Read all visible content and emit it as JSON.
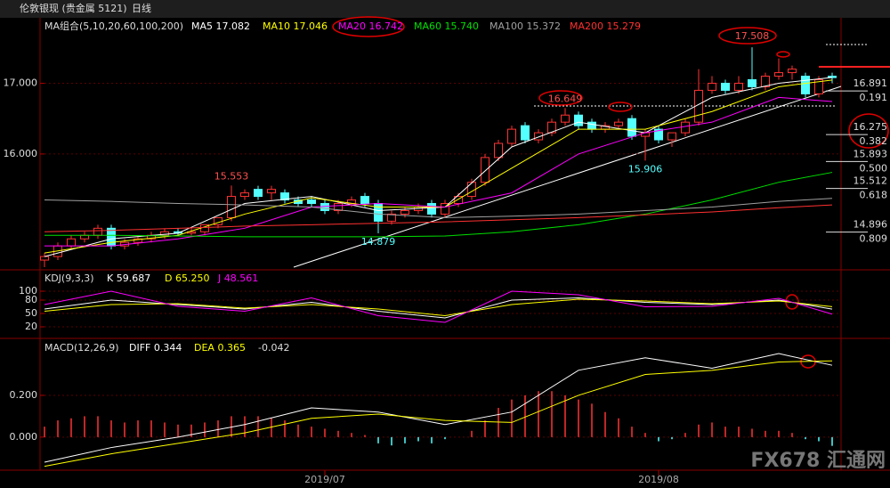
{
  "header": {
    "instrument": "伦敦银现 (贵金属 5121)",
    "period": "日线",
    "watermark": "FX678 汇通网"
  },
  "chart_data": [
    {
      "type": "candlestick",
      "title": "MA组合(5,10,20,60,100,200)",
      "open": [
        14.5,
        14.55,
        14.7,
        14.8,
        14.85,
        14.95,
        14.7,
        14.75,
        14.8,
        14.85,
        14.9,
        14.88,
        14.9,
        15.0,
        15.1,
        15.4,
        15.5,
        15.45,
        15.45,
        15.35,
        15.35,
        15.3,
        15.2,
        15.3,
        15.4,
        15.3,
        15.05,
        15.15,
        15.2,
        15.3,
        15.15,
        15.3,
        15.4,
        15.6,
        15.95,
        16.15,
        16.4,
        16.2,
        16.3,
        16.45,
        16.55,
        16.45,
        16.35,
        16.4,
        16.5,
        16.25,
        16.35,
        16.2,
        16.3,
        16.45,
        16.9,
        17.0,
        16.9,
        17.05,
        16.95,
        17.1,
        17.15,
        17.1,
        16.85,
        17.1
      ],
      "high": [
        14.6,
        14.75,
        14.85,
        14.9,
        15.0,
        15.0,
        14.8,
        14.85,
        14.9,
        14.95,
        14.95,
        14.95,
        15.0,
        15.1,
        15.553,
        15.5,
        15.55,
        15.55,
        15.5,
        15.4,
        15.4,
        15.35,
        15.35,
        15.4,
        15.45,
        15.35,
        15.2,
        15.25,
        15.3,
        15.35,
        15.35,
        15.45,
        15.65,
        16.0,
        16.2,
        16.4,
        16.45,
        16.35,
        16.5,
        16.649,
        16.6,
        16.5,
        16.45,
        16.5,
        16.55,
        16.35,
        16.4,
        16.3,
        16.5,
        17.2,
        17.1,
        17.05,
        17.1,
        17.508,
        17.15,
        17.35,
        17.25,
        17.15,
        17.1,
        17.15
      ],
      "low": [
        14.4,
        14.5,
        14.65,
        14.75,
        14.8,
        14.65,
        14.65,
        14.7,
        14.75,
        14.8,
        14.85,
        14.85,
        14.85,
        14.95,
        15.05,
        15.35,
        15.35,
        15.35,
        15.3,
        15.25,
        15.25,
        15.15,
        15.15,
        15.25,
        15.25,
        14.879,
        15.0,
        15.1,
        15.15,
        15.1,
        15.1,
        15.25,
        15.35,
        15.55,
        15.9,
        16.1,
        16.15,
        16.15,
        16.25,
        16.4,
        16.35,
        16.3,
        16.3,
        16.35,
        16.2,
        15.906,
        16.15,
        16.1,
        16.25,
        16.4,
        16.85,
        16.85,
        16.85,
        16.9,
        16.9,
        17.05,
        17.05,
        16.8,
        16.8,
        17.0
      ],
      "close": [
        14.55,
        14.7,
        14.8,
        14.85,
        14.95,
        14.7,
        14.75,
        14.8,
        14.85,
        14.9,
        14.88,
        14.9,
        15.0,
        15.1,
        15.4,
        15.45,
        15.4,
        15.5,
        15.35,
        15.3,
        15.3,
        15.2,
        15.3,
        15.35,
        15.3,
        15.05,
        15.15,
        15.2,
        15.25,
        15.15,
        15.3,
        15.4,
        15.6,
        15.95,
        16.15,
        16.35,
        16.2,
        16.3,
        16.45,
        16.55,
        16.4,
        16.35,
        16.4,
        16.45,
        16.25,
        16.3,
        16.2,
        16.3,
        16.45,
        16.9,
        17.0,
        16.9,
        17.0,
        16.95,
        17.1,
        17.15,
        17.2,
        16.85,
        17.05,
        17.08
      ],
      "up_color": "#ff3232",
      "down_color": "#54ffff",
      "ma_x": [
        0,
        5,
        10,
        15,
        20,
        25,
        30,
        35,
        40,
        45,
        50,
        55,
        59
      ],
      "series": [
        {
          "name": "MA5",
          "color": "#ffffff",
          "values": [
            14.55,
            14.8,
            14.88,
            15.3,
            15.4,
            15.2,
            15.25,
            16.1,
            16.45,
            16.3,
            16.8,
            17.0,
            17.082
          ]
        },
        {
          "name": "MA10",
          "color": "#ffff00",
          "values": [
            14.6,
            14.75,
            14.85,
            15.15,
            15.38,
            15.25,
            15.25,
            15.8,
            16.35,
            16.35,
            16.6,
            16.95,
            17.046
          ]
        },
        {
          "name": "MA20",
          "color": "#ff00ff",
          "values": [
            14.7,
            14.7,
            14.8,
            14.95,
            15.25,
            15.3,
            15.25,
            15.45,
            16.0,
            16.3,
            16.45,
            16.8,
            16.742
          ]
        },
        {
          "name": "MA60",
          "color": "#00e000",
          "values": [
            14.85,
            14.85,
            14.84,
            14.83,
            14.83,
            14.83,
            14.84,
            14.9,
            15.0,
            15.15,
            15.35,
            15.6,
            15.74
          ],
          "value_labels": [
            null,
            null,
            null,
            null,
            null,
            null,
            null,
            null,
            null,
            null,
            null,
            null,
            "15.740"
          ]
        },
        {
          "name": "MA100",
          "color": "#a0a0a0",
          "values": [
            15.35,
            15.33,
            15.3,
            15.28,
            15.25,
            15.15,
            15.1,
            15.12,
            15.15,
            15.2,
            15.25,
            15.33,
            15.372
          ]
        },
        {
          "name": "MA200",
          "color": "#ff3030",
          "values": [
            14.9,
            14.92,
            14.95,
            14.98,
            15.0,
            15.02,
            15.04,
            15.07,
            15.1,
            15.14,
            15.18,
            15.24,
            15.279
          ]
        }
      ],
      "fib": {
        "prices": [
          16.891,
          16.275,
          15.893,
          15.512,
          14.896
        ],
        "ratios": [
          "0.191",
          "0.382",
          "0.500",
          "0.618",
          "0.809"
        ]
      },
      "ylim": [
        14.4,
        17.9
      ],
      "yticks": [
        {
          "value": 17,
          "label": "17.000"
        },
        {
          "value": 16,
          "label": "16.000"
        }
      ],
      "grid": true
    },
    {
      "type": "line",
      "title": "KDJ(9,3,3)",
      "x": [
        0,
        5,
        10,
        15,
        20,
        25,
        30,
        35,
        40,
        45,
        50,
        55,
        59
      ],
      "series": [
        {
          "name": "K",
          "color": "#ffffff",
          "values": [
            60,
            80,
            70,
            60,
            75,
            55,
            40,
            80,
            85,
            75,
            70,
            80,
            59.687
          ]
        },
        {
          "name": "D",
          "color": "#ffff00",
          "values": [
            55,
            70,
            72,
            62,
            70,
            60,
            45,
            70,
            82,
            78,
            72,
            78,
            65.25
          ],
          "value_labels": [
            null,
            null,
            null,
            null,
            null,
            null,
            null,
            null,
            null,
            null,
            null,
            null,
            "65.250"
          ]
        },
        {
          "name": "J",
          "color": "#ff00ff",
          "values": [
            70,
            100,
            66,
            55,
            85,
            45,
            30,
            100,
            92,
            65,
            66,
            84,
            48.561
          ]
        }
      ],
      "ylim": [
        -2,
        144
      ],
      "yticks": [
        100,
        80,
        50,
        20
      ],
      "grid": true
    },
    {
      "type": "macd",
      "title": "MACD(12,26,9)",
      "x": [
        0,
        5,
        10,
        15,
        20,
        25,
        30,
        35,
        40,
        45,
        50,
        55,
        59
      ],
      "categories": [
        null,
        null,
        null,
        null,
        null,
        null,
        null,
        null,
        null,
        null,
        null,
        null,
        null,
        null,
        null,
        null,
        null,
        null,
        null,
        null,
        null,
        "2019/07",
        null,
        null,
        null,
        null,
        null,
        null,
        null,
        null,
        null,
        null,
        null,
        null,
        null,
        null,
        null,
        null,
        null,
        null,
        null,
        null,
        null,
        null,
        null,
        null,
        "2019/08",
        null,
        null,
        null,
        null,
        null,
        null,
        null,
        null,
        null,
        null,
        null,
        null,
        null
      ],
      "series": [
        {
          "name": "DIFF",
          "color": "#ffffff",
          "values": [
            -0.12,
            -0.05,
            0.0,
            0.06,
            0.14,
            0.12,
            0.06,
            0.12,
            0.32,
            0.38,
            0.33,
            0.4,
            0.344
          ]
        },
        {
          "name": "DEA",
          "color": "#ffff00",
          "values": [
            -0.14,
            -0.08,
            -0.03,
            0.02,
            0.09,
            0.11,
            0.08,
            0.07,
            0.2,
            0.3,
            0.32,
            0.36,
            0.365
          ]
        }
      ],
      "histogram": {
        "values": [
          0.05,
          0.08,
          0.09,
          0.1,
          0.1,
          0.08,
          0.07,
          0.08,
          0.08,
          0.07,
          0.06,
          0.06,
          0.07,
          0.08,
          0.1,
          0.1,
          0.1,
          0.09,
          0.08,
          0.06,
          0.05,
          0.04,
          0.03,
          0.02,
          0.01,
          -0.03,
          -0.04,
          -0.03,
          -0.02,
          -0.03,
          -0.01,
          0.0,
          0.03,
          0.08,
          0.14,
          0.18,
          0.2,
          0.22,
          0.22,
          0.2,
          0.18,
          0.16,
          0.12,
          0.09,
          0.05,
          0.02,
          -0.02,
          -0.01,
          0.02,
          0.06,
          0.07,
          0.05,
          0.05,
          0.04,
          0.03,
          0.03,
          0.02,
          -0.01,
          -0.02,
          -0.042
        ],
        "up_color": "#ff3232",
        "down_color": "#54ffff"
      },
      "ylim": [
        -0.15,
        0.46
      ],
      "yticks": [
        {
          "value": 0.2,
          "label": "0.200"
        },
        {
          "value": 0,
          "label": "0.000"
        }
      ],
      "grid": true
    }
  ]
}
